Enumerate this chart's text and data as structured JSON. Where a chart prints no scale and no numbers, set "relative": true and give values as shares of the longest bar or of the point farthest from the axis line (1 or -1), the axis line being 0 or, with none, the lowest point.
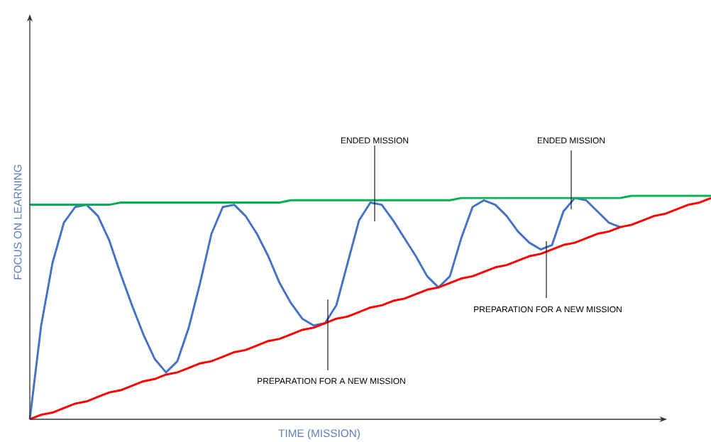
{
  "chart_data": {
    "type": "line",
    "relative": true,
    "xlabel": "TIME (MISSION)",
    "ylabel": "FOCUS ON LEARNING",
    "marker": "none",
    "categories": [
      null,
      null,
      null,
      null,
      null,
      null,
      null,
      null,
      null,
      null,
      null,
      null,
      null,
      null,
      null,
      null,
      null,
      null,
      null,
      null,
      null,
      null,
      null,
      null,
      null,
      null,
      null,
      null,
      null,
      null,
      null,
      null,
      null,
      null,
      null,
      null,
      null,
      null,
      null,
      null,
      null,
      null,
      null,
      null,
      null,
      null,
      null,
      null,
      null,
      null,
      null,
      null,
      null,
      null,
      null,
      null,
      null,
      null,
      null,
      null,
      null
    ],
    "series": [
      {
        "color": "#4472c4",
        "values": [
          0,
          0.42,
          0.7,
          0.88,
          0.95,
          0.96,
          0.91,
          0.8,
          0.65,
          0.51,
          0.38,
          0.27,
          0.21,
          0.26,
          0.41,
          0.61,
          0.83,
          0.95,
          0.96,
          0.91,
          0.83,
          0.73,
          0.61,
          0.52,
          0.45,
          0.42,
          0.43,
          0.51,
          0.7,
          0.89,
          0.97,
          0.96,
          0.89,
          0.81,
          0.73,
          0.64,
          0.59,
          0.64,
          0.81,
          0.95,
          0.98,
          0.96,
          0.91,
          0.84,
          0.79,
          0.76,
          0.78,
          0.93,
          0.99,
          0.98,
          0.93,
          0.88,
          0.86,
          null,
          null,
          null,
          null,
          null,
          null,
          null,
          null
        ]
      },
      {
        "color": "#00b050",
        "values": [
          0.96,
          0.96,
          0.96,
          0.96,
          0.96,
          0.96,
          0.96,
          0.96,
          0.97,
          0.97,
          0.97,
          0.97,
          0.97,
          0.97,
          0.97,
          0.97,
          0.97,
          0.97,
          0.97,
          0.97,
          0.97,
          0.97,
          0.97,
          0.98,
          0.98,
          0.98,
          0.98,
          0.98,
          0.98,
          0.98,
          0.98,
          0.98,
          0.98,
          0.98,
          0.98,
          0.98,
          0.98,
          0.98,
          0.99,
          0.99,
          0.99,
          0.99,
          0.99,
          0.99,
          0.99,
          0.99,
          0.99,
          0.99,
          0.99,
          0.99,
          0.99,
          0.99,
          0.99,
          1.0,
          1.0,
          1.0,
          1.0,
          1.0,
          1.0,
          1.0,
          1.0
        ]
      },
      {
        "color": "#ff0000",
        "values": [
          0,
          0.02,
          0.03,
          0.05,
          0.07,
          0.08,
          0.1,
          0.12,
          0.13,
          0.15,
          0.17,
          0.18,
          0.2,
          0.21,
          0.23,
          0.25,
          0.26,
          0.28,
          0.3,
          0.31,
          0.33,
          0.35,
          0.36,
          0.38,
          0.4,
          0.41,
          0.43,
          0.45,
          0.46,
          0.48,
          0.5,
          0.51,
          0.53,
          0.54,
          0.56,
          0.58,
          0.59,
          0.61,
          0.63,
          0.64,
          0.66,
          0.68,
          0.69,
          0.71,
          0.73,
          0.74,
          0.76,
          0.78,
          0.79,
          0.81,
          0.83,
          0.84,
          0.86,
          0.87,
          0.89,
          0.91,
          0.92,
          0.94,
          0.96,
          0.97,
          0.99
        ]
      }
    ],
    "annotations": [
      "ENDED MISSION",
      "PREPARATION FOR A NEW MISSION",
      "ENDED MISSION",
      "PREPARATION FOR A NEW MISSION"
    ]
  }
}
